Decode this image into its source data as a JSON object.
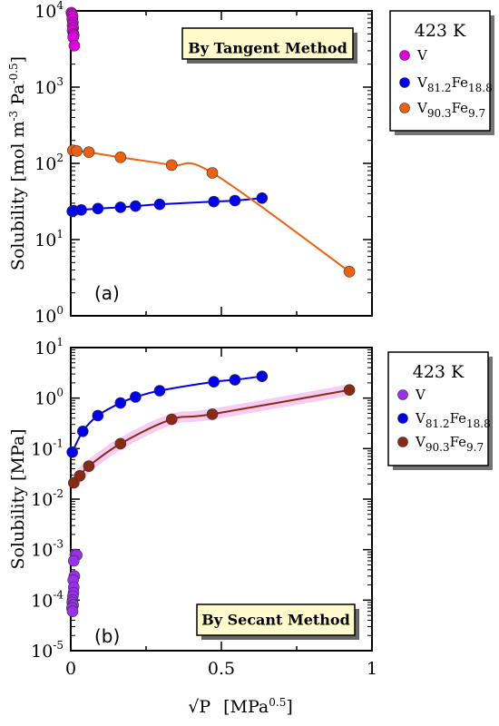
{
  "chart_data": [
    {
      "type": "scatter",
      "panel_label": "(a)",
      "method_label": "By Tangent Method",
      "ylabel": "Solubility [mol m-3 Pa-0.5]",
      "ylabel_main": "Solubility [mol m",
      "ylabel_exp1": "-3",
      "ylabel_mid": " Pa",
      "ylabel_exp2": "-0.5",
      "ylabel_end": "]",
      "yscale": "log",
      "ylim": [
        1,
        10000
      ],
      "xlim": [
        0,
        1
      ],
      "y_ticks": [
        {
          "base": "10",
          "exp": "0",
          "value": 1
        },
        {
          "base": "10",
          "exp": "1",
          "value": 10
        },
        {
          "base": "10",
          "exp": "2",
          "value": 100
        },
        {
          "base": "10",
          "exp": "3",
          "value": 1000
        },
        {
          "base": "10",
          "exp": "4",
          "value": 10000
        }
      ],
      "legend": {
        "title": "423 K",
        "entries": [
          {
            "main": "V",
            "sub1": "",
            "mid": "",
            "sub2": ""
          },
          {
            "main": "V",
            "sub1": "81.2",
            "mid": "Fe",
            "sub2": "18.8"
          },
          {
            "main": "V",
            "sub1": "90.3",
            "mid": "Fe",
            "sub2": "9.7"
          }
        ]
      },
      "series": [
        {
          "name": "V",
          "color": "#e000e0",
          "points": [
            [
              0.002,
              9500
            ],
            [
              0.004,
              9000
            ],
            [
              0.006,
              8500
            ],
            [
              0.005,
              7800
            ],
            [
              0.007,
              7000
            ],
            [
              0.006,
              6500
            ],
            [
              0.008,
              6000
            ],
            [
              0.006,
              5500
            ],
            [
              0.009,
              5000
            ],
            [
              0.01,
              4800
            ],
            [
              0.008,
              4500
            ],
            [
              0.012,
              3500
            ]
          ]
        },
        {
          "name": "V81.2Fe18.8",
          "color": "#0000ee",
          "curve": true,
          "points": [
            [
              0.005,
              23.5
            ],
            [
              0.01,
              24
            ],
            [
              0.035,
              24.5
            ],
            [
              0.09,
              25.5
            ],
            [
              0.165,
              26.5
            ],
            [
              0.215,
              27.5
            ],
            [
              0.295,
              29
            ],
            [
              0.475,
              31.5
            ],
            [
              0.545,
              32.5
            ],
            [
              0.635,
              35
            ]
          ]
        },
        {
          "name": "V90.3Fe9.7",
          "color": "#ee6010",
          "curve": true,
          "points": [
            [
              0.007,
              148
            ],
            [
              0.02,
              145
            ],
            [
              0.06,
              140
            ],
            [
              0.165,
              120
            ],
            [
              0.335,
              95
            ],
            [
              0.47,
              75
            ],
            [
              0.925,
              3.8
            ]
          ]
        }
      ]
    },
    {
      "type": "scatter",
      "panel_label": "(b)",
      "method_label": "By Secant Method",
      "ylabel": "Solubility [MPa]",
      "xlabel": "√P [MPa0.5]",
      "xlabel_root": "√P",
      "xlabel_unit": "[MPa",
      "xlabel_exp": "0.5",
      "xlabel_end": "]",
      "yscale": "log",
      "ylim": [
        1e-05,
        10
      ],
      "xlim": [
        0,
        1
      ],
      "x_ticks": [
        "0",
        "0.5",
        "1"
      ],
      "y_ticks": [
        {
          "base": "10",
          "exp": "-5",
          "value": 1e-05
        },
        {
          "base": "10",
          "exp": "-4",
          "value": 0.0001
        },
        {
          "base": "10",
          "exp": "-3",
          "value": 0.001
        },
        {
          "base": "10",
          "exp": "-2",
          "value": 0.01
        },
        {
          "base": "10",
          "exp": "-1",
          "value": 0.1
        },
        {
          "base": "10",
          "exp": "0",
          "value": 1
        },
        {
          "base": "10",
          "exp": "1",
          "value": 10
        }
      ],
      "legend": {
        "title": "423 K",
        "entries": [
          {
            "main": "V",
            "sub1": "",
            "mid": "",
            "sub2": ""
          },
          {
            "main": "V",
            "sub1": "81.2",
            "mid": "Fe",
            "sub2": "18.8"
          },
          {
            "main": "V",
            "sub1": "90.3",
            "mid": "Fe",
            "sub2": "9.7"
          }
        ]
      },
      "series": [
        {
          "name": "V",
          "color": "#9a30ee",
          "points": [
            [
              0.015,
              0.0008
            ],
            [
              0.02,
              0.00078
            ],
            [
              0.01,
              0.0006
            ],
            [
              0.012,
              0.0003
            ],
            [
              0.008,
              0.00025
            ],
            [
              0.01,
              0.00018
            ],
            [
              0.009,
              0.00014
            ],
            [
              0.007,
              0.00012
            ],
            [
              0.006,
              0.0001
            ],
            [
              0.005,
              9e-05
            ],
            [
              0.008,
              8e-05
            ],
            [
              0.004,
              7e-05
            ],
            [
              0.006,
              6e-05
            ]
          ]
        },
        {
          "name": "V81.2Fe18.8",
          "color": "#0000ee",
          "curve": true,
          "points": [
            [
              0.005,
              0.085
            ],
            [
              0.04,
              0.22
            ],
            [
              0.09,
              0.45
            ],
            [
              0.165,
              0.8
            ],
            [
              0.215,
              1.05
            ],
            [
              0.295,
              1.4
            ],
            [
              0.475,
              2.1
            ],
            [
              0.545,
              2.3
            ],
            [
              0.635,
              2.7
            ]
          ]
        },
        {
          "name": "V90.3Fe9.7",
          "color": "#8b2a14",
          "curve": true,
          "points": [
            [
              0.01,
              0.021
            ],
            [
              0.03,
              0.029
            ],
            [
              0.06,
              0.045
            ],
            [
              0.165,
              0.125
            ],
            [
              0.335,
              0.38
            ],
            [
              0.47,
              0.48
            ],
            [
              0.925,
              1.45
            ]
          ]
        }
      ]
    }
  ]
}
